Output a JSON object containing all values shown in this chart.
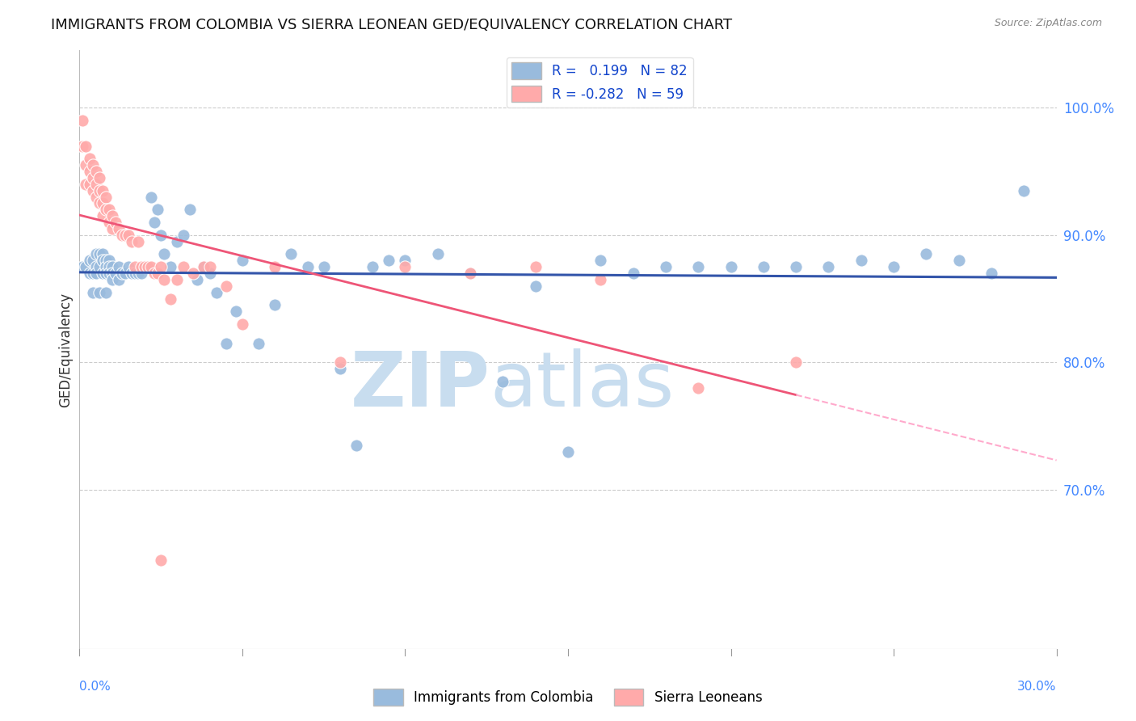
{
  "title": "IMMIGRANTS FROM COLOMBIA VS SIERRA LEONEAN GED/EQUIVALENCY CORRELATION CHART",
  "source": "Source: ZipAtlas.com",
  "ylabel": "GED/Equivalency",
  "y_ticks_labels": [
    "70.0%",
    "80.0%",
    "90.0%",
    "100.0%"
  ],
  "y_tick_values": [
    0.7,
    0.8,
    0.9,
    1.0
  ],
  "xlim": [
    0.0,
    0.3
  ],
  "ylim": [
    0.575,
    1.045
  ],
  "legend_blue_r": "0.199",
  "legend_blue_n": "82",
  "legend_pink_r": "-0.282",
  "legend_pink_n": "59",
  "blue_color": "#99BBDD",
  "pink_color": "#FFAAAA",
  "blue_line_color": "#3355AA",
  "pink_line_color": "#EE5577",
  "pink_dash_color": "#FFAACC",
  "watermark_zip_color": "#C8DDEF",
  "watermark_atlas_color": "#C8DDEF",
  "scatter_size": 120,
  "blue_scatter_x": [
    0.001,
    0.002,
    0.003,
    0.003,
    0.004,
    0.004,
    0.005,
    0.005,
    0.005,
    0.006,
    0.006,
    0.007,
    0.007,
    0.007,
    0.008,
    0.008,
    0.008,
    0.009,
    0.009,
    0.009,
    0.01,
    0.01,
    0.01,
    0.011,
    0.012,
    0.012,
    0.013,
    0.014,
    0.015,
    0.016,
    0.017,
    0.018,
    0.019,
    0.02,
    0.022,
    0.023,
    0.024,
    0.025,
    0.026,
    0.028,
    0.03,
    0.032,
    0.034,
    0.036,
    0.038,
    0.04,
    0.042,
    0.045,
    0.048,
    0.05,
    0.055,
    0.06,
    0.065,
    0.07,
    0.075,
    0.08,
    0.085,
    0.09,
    0.095,
    0.1,
    0.11,
    0.12,
    0.13,
    0.14,
    0.15,
    0.16,
    0.17,
    0.18,
    0.19,
    0.2,
    0.21,
    0.22,
    0.23,
    0.24,
    0.25,
    0.26,
    0.27,
    0.28,
    0.29,
    0.004,
    0.006,
    0.008
  ],
  "blue_scatter_y": [
    0.875,
    0.875,
    0.88,
    0.87,
    0.88,
    0.87,
    0.885,
    0.875,
    0.87,
    0.885,
    0.875,
    0.885,
    0.88,
    0.87,
    0.88,
    0.875,
    0.87,
    0.88,
    0.875,
    0.87,
    0.875,
    0.87,
    0.865,
    0.87,
    0.875,
    0.865,
    0.87,
    0.87,
    0.875,
    0.87,
    0.87,
    0.87,
    0.87,
    0.875,
    0.93,
    0.91,
    0.92,
    0.9,
    0.885,
    0.875,
    0.895,
    0.9,
    0.92,
    0.865,
    0.875,
    0.87,
    0.855,
    0.815,
    0.84,
    0.88,
    0.815,
    0.845,
    0.885,
    0.875,
    0.875,
    0.795,
    0.735,
    0.875,
    0.88,
    0.88,
    0.885,
    0.87,
    0.785,
    0.86,
    0.73,
    0.88,
    0.87,
    0.875,
    0.875,
    0.875,
    0.875,
    0.875,
    0.875,
    0.88,
    0.875,
    0.885,
    0.88,
    0.87,
    0.935,
    0.855,
    0.855,
    0.855
  ],
  "pink_scatter_x": [
    0.001,
    0.001,
    0.002,
    0.002,
    0.002,
    0.003,
    0.003,
    0.003,
    0.004,
    0.004,
    0.004,
    0.005,
    0.005,
    0.005,
    0.006,
    0.006,
    0.006,
    0.007,
    0.007,
    0.007,
    0.008,
    0.008,
    0.009,
    0.009,
    0.01,
    0.01,
    0.011,
    0.012,
    0.013,
    0.014,
    0.015,
    0.016,
    0.017,
    0.018,
    0.019,
    0.02,
    0.021,
    0.022,
    0.023,
    0.024,
    0.025,
    0.026,
    0.028,
    0.03,
    0.032,
    0.035,
    0.038,
    0.04,
    0.045,
    0.05,
    0.06,
    0.08,
    0.1,
    0.12,
    0.14,
    0.16,
    0.19,
    0.22,
    0.025
  ],
  "pink_scatter_y": [
    0.99,
    0.97,
    0.97,
    0.955,
    0.94,
    0.96,
    0.95,
    0.94,
    0.955,
    0.945,
    0.935,
    0.95,
    0.94,
    0.93,
    0.945,
    0.935,
    0.925,
    0.935,
    0.925,
    0.915,
    0.93,
    0.92,
    0.92,
    0.91,
    0.915,
    0.905,
    0.91,
    0.905,
    0.9,
    0.9,
    0.9,
    0.895,
    0.875,
    0.895,
    0.875,
    0.875,
    0.875,
    0.875,
    0.87,
    0.87,
    0.875,
    0.865,
    0.85,
    0.865,
    0.875,
    0.87,
    0.875,
    0.875,
    0.86,
    0.83,
    0.875,
    0.8,
    0.875,
    0.87,
    0.875,
    0.865,
    0.78,
    0.8,
    0.645
  ]
}
